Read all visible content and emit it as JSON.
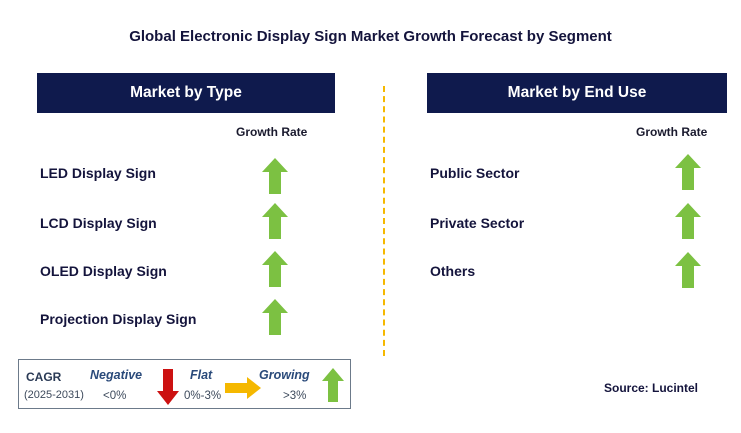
{
  "title": "Global Electronic Display Sign Market Growth Forecast by Segment",
  "left_panel": {
    "header": "Market by Type",
    "column_header": "Growth Rate",
    "rows": [
      {
        "label": "LED Display Sign",
        "trend": "growing"
      },
      {
        "label": "LCD Display Sign",
        "trend": "growing"
      },
      {
        "label": "OLED Display Sign",
        "trend": "growing"
      },
      {
        "label": "Projection Display Sign",
        "trend": "growing"
      }
    ]
  },
  "right_panel": {
    "header": "Market by End Use",
    "column_header": "Growth Rate",
    "rows": [
      {
        "label": "Public Sector",
        "trend": "growing"
      },
      {
        "label": "Private Sector",
        "trend": "growing"
      },
      {
        "label": "Others",
        "trend": "growing"
      }
    ]
  },
  "legend": {
    "cagr_label": "CAGR",
    "period": "(2025-2031)",
    "negative": {
      "label": "Negative",
      "range": "<0%"
    },
    "flat": {
      "label": "Flat",
      "range": "0%-3%"
    },
    "growing": {
      "label": "Growing",
      "range": ">3%"
    }
  },
  "source": "Source: Lucintel",
  "colors": {
    "header_bg": "#0f1a4d",
    "growing_arrow": "#7cc142",
    "negative_arrow": "#cc1111",
    "flat_arrow": "#f5b800",
    "divider": "#f5b800"
  },
  "icons": {
    "growing": "green-up-arrow-icon",
    "negative": "red-down-arrow-icon",
    "flat": "yellow-right-arrow-icon"
  }
}
